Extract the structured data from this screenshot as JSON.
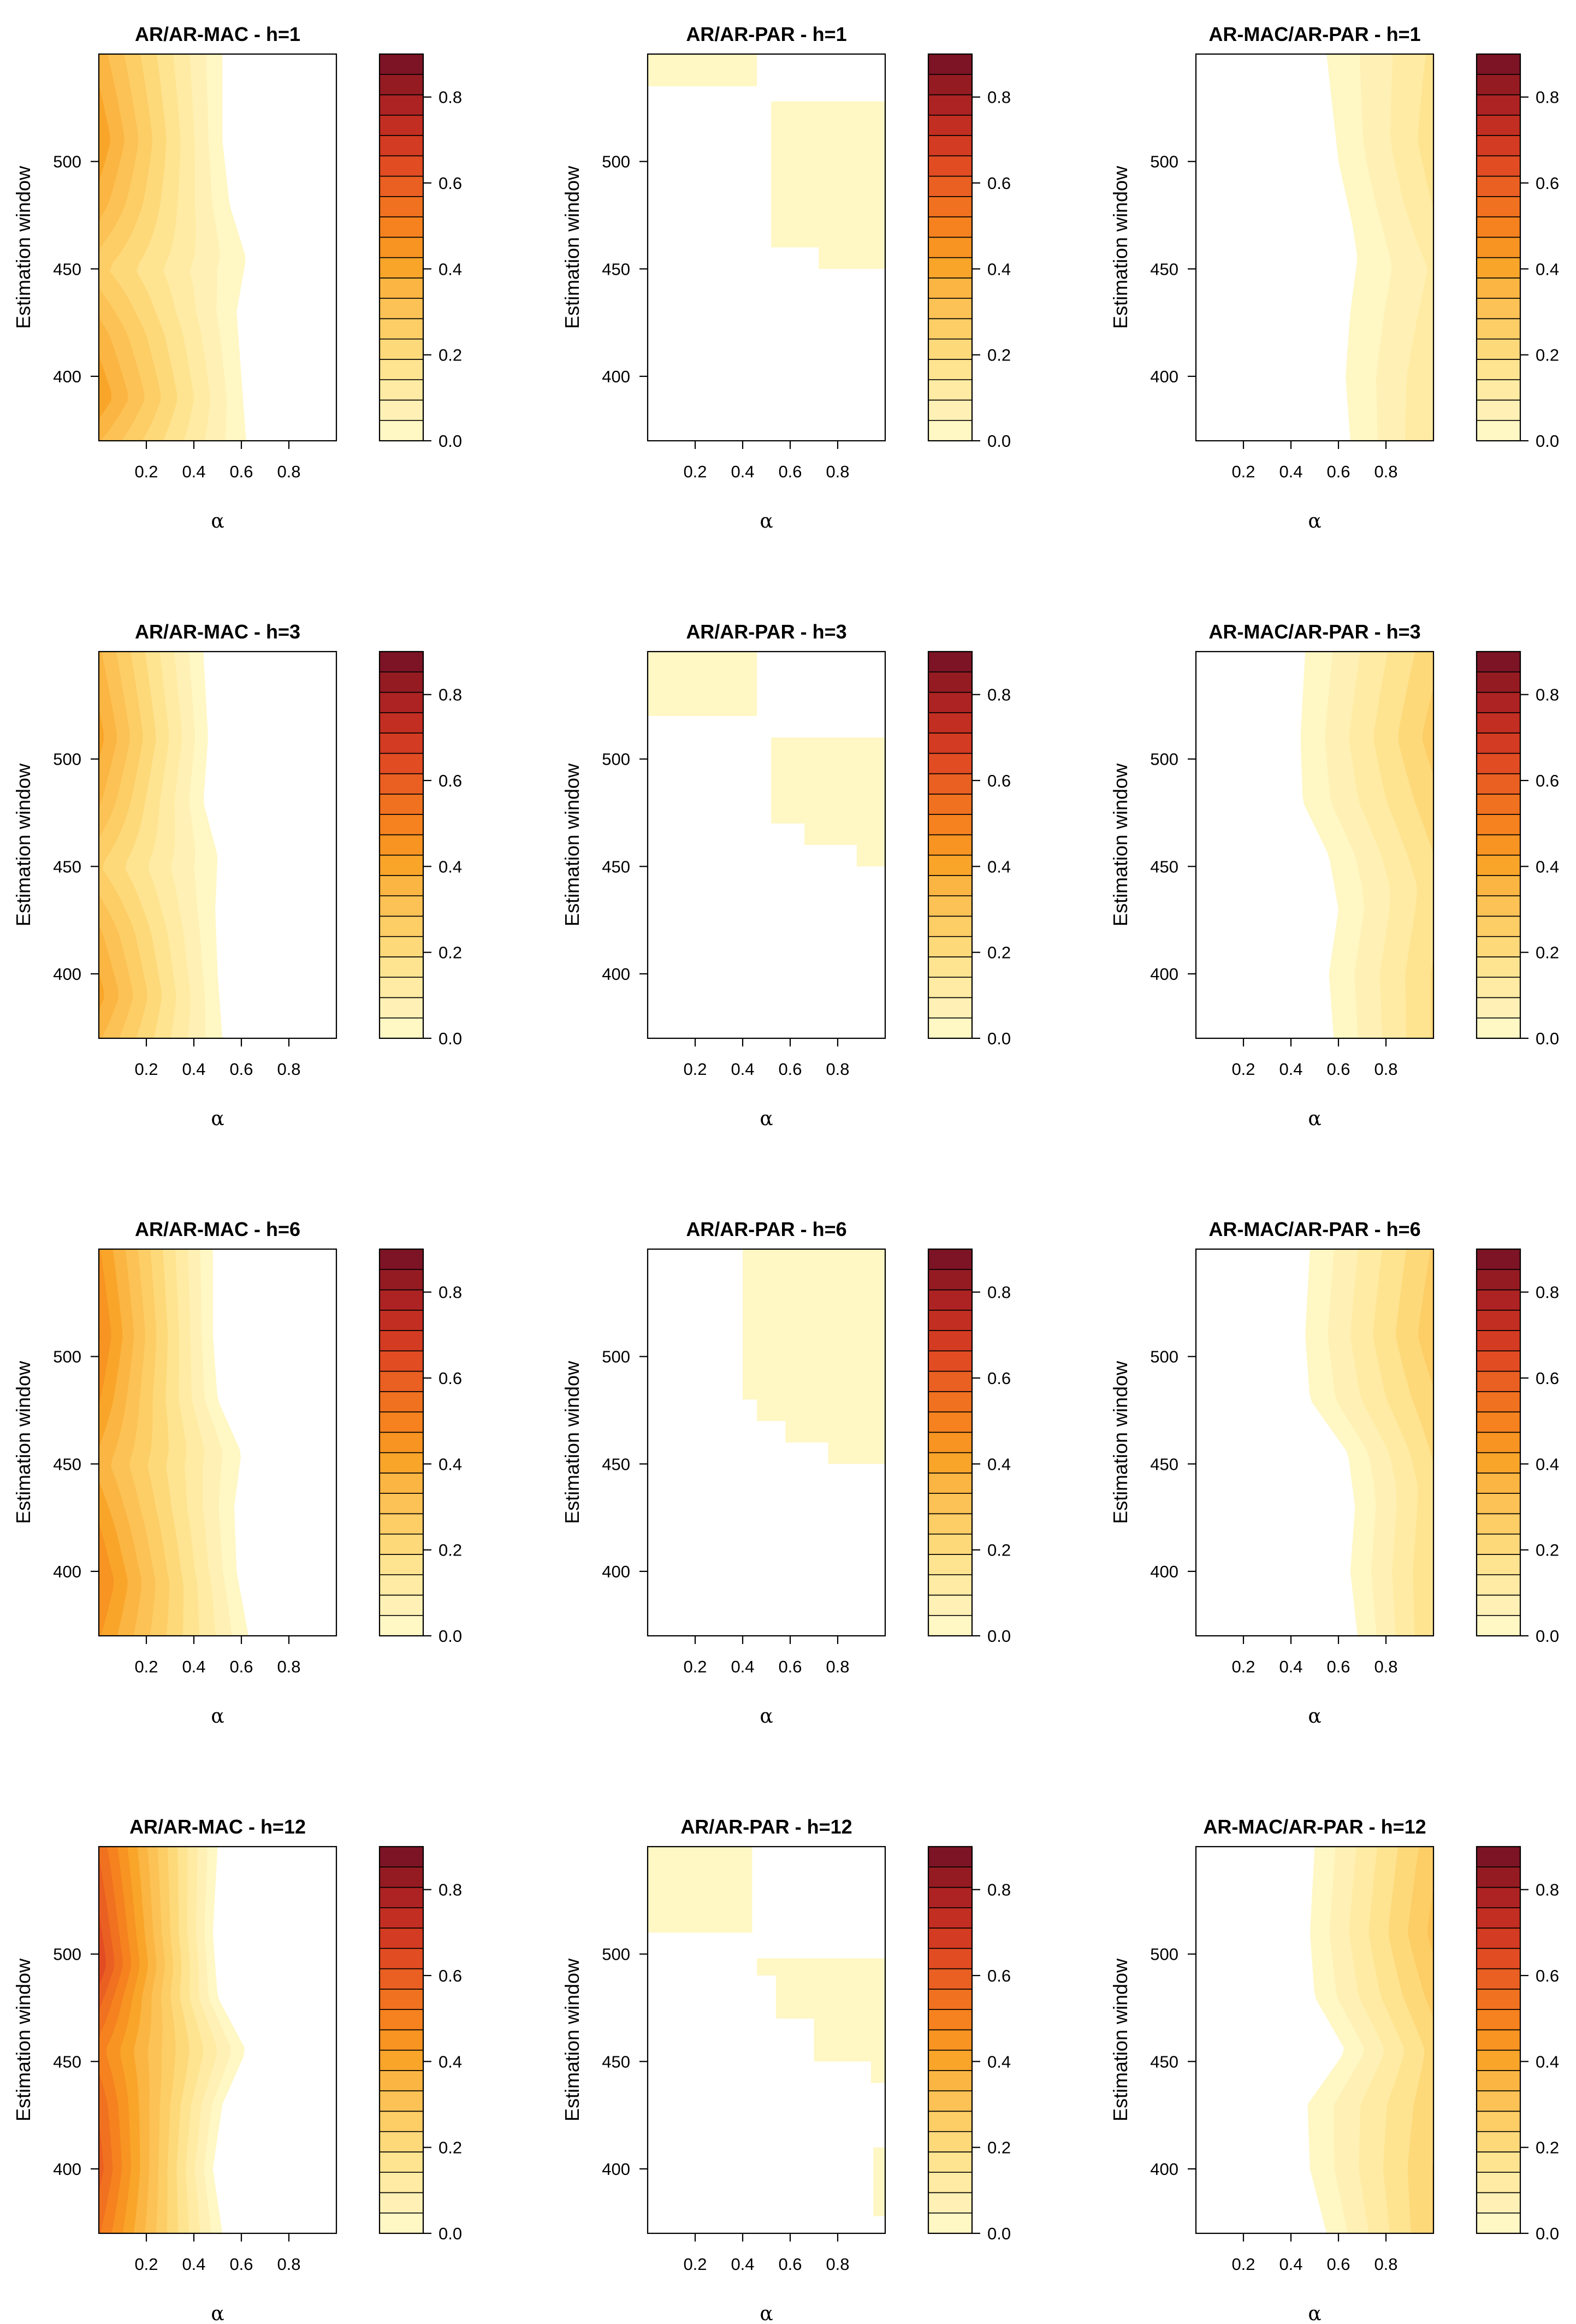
{
  "chart_data": {
    "type": "heatmap",
    "xlabel": "α",
    "ylabel": "Estimation window",
    "xlim": [
      0.0,
      1.0
    ],
    "ylim": [
      370,
      550
    ],
    "x_ticks": [
      "0.2",
      "0.4",
      "0.6",
      "0.8"
    ],
    "y_ticks": [
      "400",
      "450",
      "500"
    ],
    "colorbar": {
      "range": [
        0.0,
        0.9
      ],
      "ticks": [
        "0.0",
        "0.2",
        "0.4",
        "0.6",
        "0.8"
      ],
      "colors": [
        "#fff7c4",
        "#fff1b5",
        "#ffeba3",
        "#fee491",
        "#fed97a",
        "#fdcd66",
        "#fcc255",
        "#fbb542",
        "#f9a52a",
        "#f79422",
        "#f5821f",
        "#f0711f",
        "#ea5f22",
        "#e24c23",
        "#d33b22",
        "#c22e22",
        "#ad2323",
        "#951b23",
        "#7c1425"
      ]
    },
    "panels": [
      {
        "title": "AR/AR-MAC - h=1",
        "peak": 0.42,
        "pattern": "left",
        "cutoff": [
          [
            370,
            0.62
          ],
          [
            400,
            0.6
          ],
          [
            430,
            0.58
          ],
          [
            455,
            0.62
          ],
          [
            480,
            0.55
          ],
          [
            510,
            0.52
          ],
          [
            550,
            0.52
          ]
        ],
        "mod": [
          [
            370,
            0.8
          ],
          [
            390,
            1.0
          ],
          [
            420,
            0.85
          ],
          [
            450,
            0.6
          ],
          [
            480,
            0.85
          ],
          [
            510,
            1.0
          ],
          [
            550,
            0.85
          ]
        ]
      },
      {
        "title": "AR/AR-PAR - h=1",
        "peak": 0.04,
        "pattern": "blocks",
        "blocks": [
          [
            0.0,
            0.46,
            535,
            550
          ],
          [
            0.52,
            1.0,
            460,
            528
          ],
          [
            0.72,
            1.0,
            450,
            460
          ]
        ]
      },
      {
        "title": "AR-MAC/AR-PAR - h=1",
        "peak": 0.17,
        "pattern": "right",
        "cutoff": [
          [
            370,
            0.65
          ],
          [
            400,
            0.63
          ],
          [
            430,
            0.65
          ],
          [
            455,
            0.68
          ],
          [
            470,
            0.66
          ],
          [
            500,
            0.6
          ],
          [
            550,
            0.55
          ]
        ],
        "mod": [
          [
            370,
            0.85
          ],
          [
            400,
            0.8
          ],
          [
            450,
            0.6
          ],
          [
            480,
            0.85
          ],
          [
            510,
            1.0
          ],
          [
            550,
            0.9
          ]
        ]
      },
      {
        "title": "AR/AR-MAC - h=3",
        "peak": 0.4,
        "pattern": "left",
        "cutoff": [
          [
            370,
            0.52
          ],
          [
            400,
            0.5
          ],
          [
            430,
            0.49
          ],
          [
            455,
            0.5
          ],
          [
            480,
            0.44
          ],
          [
            510,
            0.46
          ],
          [
            550,
            0.44
          ]
        ],
        "mod": [
          [
            370,
            0.85
          ],
          [
            390,
            1.0
          ],
          [
            420,
            0.85
          ],
          [
            450,
            0.6
          ],
          [
            480,
            0.85
          ],
          [
            510,
            1.0
          ],
          [
            550,
            0.85
          ]
        ]
      },
      {
        "title": "AR/AR-PAR - h=3",
        "peak": 0.04,
        "pattern": "blocks",
        "blocks": [
          [
            0.0,
            0.46,
            520,
            550
          ],
          [
            0.52,
            1.0,
            470,
            510
          ],
          [
            0.66,
            1.0,
            460,
            470
          ],
          [
            0.88,
            1.0,
            450,
            460
          ]
        ]
      },
      {
        "title": "AR-MAC/AR-PAR - h=3",
        "peak": 0.26,
        "pattern": "right",
        "cutoff": [
          [
            370,
            0.58
          ],
          [
            400,
            0.56
          ],
          [
            430,
            0.6
          ],
          [
            455,
            0.56
          ],
          [
            480,
            0.45
          ],
          [
            510,
            0.44
          ],
          [
            550,
            0.46
          ]
        ],
        "mod": [
          [
            370,
            0.75
          ],
          [
            400,
            0.75
          ],
          [
            440,
            0.65
          ],
          [
            470,
            0.8
          ],
          [
            510,
            1.0
          ],
          [
            550,
            0.85
          ]
        ]
      },
      {
        "title": "AR/AR-MAC - h=6",
        "peak": 0.48,
        "pattern": "left",
        "cutoff": [
          [
            370,
            0.63
          ],
          [
            400,
            0.58
          ],
          [
            430,
            0.57
          ],
          [
            455,
            0.6
          ],
          [
            480,
            0.5
          ],
          [
            510,
            0.48
          ],
          [
            550,
            0.48
          ]
        ],
        "mod": [
          [
            370,
            0.9
          ],
          [
            395,
            1.0
          ],
          [
            420,
            0.9
          ],
          [
            450,
            0.75
          ],
          [
            480,
            0.9
          ],
          [
            510,
            1.0
          ],
          [
            550,
            0.9
          ]
        ]
      },
      {
        "title": "AR/AR-PAR - h=6",
        "peak": 0.04,
        "pattern": "blocks",
        "blocks": [
          [
            0.4,
            1.0,
            480,
            550
          ],
          [
            0.46,
            1.0,
            470,
            480
          ],
          [
            0.58,
            1.0,
            460,
            470
          ],
          [
            0.76,
            1.0,
            450,
            460
          ]
        ]
      },
      {
        "title": "AR-MAC/AR-PAR - h=6",
        "peak": 0.27,
        "pattern": "right",
        "cutoff": [
          [
            370,
            0.68
          ],
          [
            400,
            0.65
          ],
          [
            430,
            0.67
          ],
          [
            455,
            0.64
          ],
          [
            480,
            0.48
          ],
          [
            510,
            0.46
          ],
          [
            550,
            0.48
          ]
        ],
        "mod": [
          [
            370,
            0.7
          ],
          [
            400,
            0.7
          ],
          [
            440,
            0.65
          ],
          [
            470,
            0.8
          ],
          [
            510,
            1.0
          ],
          [
            550,
            0.9
          ]
        ]
      },
      {
        "title": "AR/AR-MAC - h=12",
        "peak": 0.66,
        "pattern": "left",
        "cutoff": [
          [
            370,
            0.52
          ],
          [
            400,
            0.48
          ],
          [
            430,
            0.52
          ],
          [
            455,
            0.62
          ],
          [
            480,
            0.5
          ],
          [
            510,
            0.48
          ],
          [
            550,
            0.5
          ]
        ],
        "mod": [
          [
            370,
            0.8
          ],
          [
            400,
            0.9
          ],
          [
            430,
            0.85
          ],
          [
            455,
            0.75
          ],
          [
            480,
            0.9
          ],
          [
            495,
            1.0
          ],
          [
            550,
            0.85
          ]
        ]
      },
      {
        "title": "AR/AR-PAR - h=12",
        "peak": 0.04,
        "pattern": "blocks",
        "blocks": [
          [
            0.0,
            0.44,
            510,
            550
          ],
          [
            0.46,
            1.0,
            490,
            498
          ],
          [
            0.54,
            1.0,
            470,
            490
          ],
          [
            0.7,
            1.0,
            450,
            470
          ],
          [
            0.94,
            1.0,
            440,
            450
          ],
          [
            0.95,
            1.0,
            378,
            410
          ]
        ]
      },
      {
        "title": "AR-MAC/AR-PAR - h=12",
        "peak": 0.3,
        "pattern": "right",
        "cutoff": [
          [
            370,
            0.55
          ],
          [
            400,
            0.48
          ],
          [
            430,
            0.47
          ],
          [
            455,
            0.63
          ],
          [
            480,
            0.5
          ],
          [
            510,
            0.48
          ],
          [
            550,
            0.5
          ]
        ],
        "mod": [
          [
            370,
            0.8
          ],
          [
            400,
            0.8
          ],
          [
            430,
            0.75
          ],
          [
            455,
            0.7
          ],
          [
            480,
            0.85
          ],
          [
            510,
            1.0
          ],
          [
            550,
            0.9
          ]
        ]
      }
    ]
  }
}
